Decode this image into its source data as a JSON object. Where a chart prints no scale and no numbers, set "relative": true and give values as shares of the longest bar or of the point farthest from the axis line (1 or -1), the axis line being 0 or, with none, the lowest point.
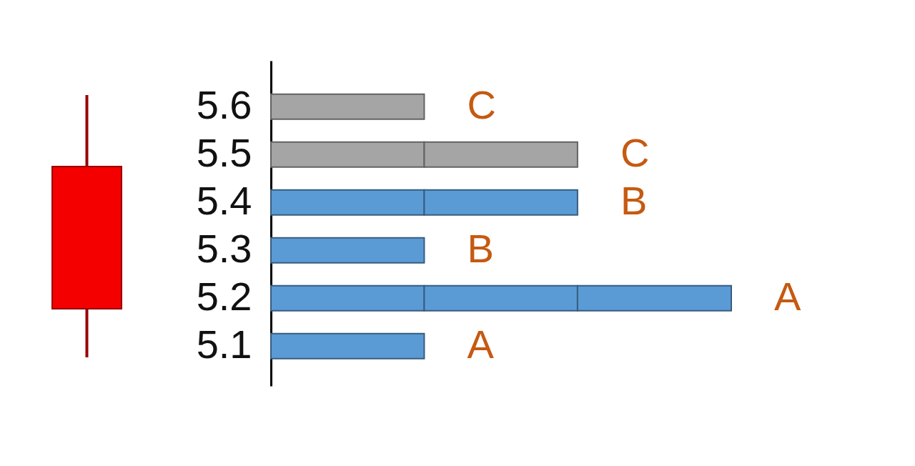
{
  "chart_data": {
    "type": "bar",
    "orientation": "horizontal",
    "relative": true,
    "stacked": true,
    "categories": [
      "5.6",
      "5.5",
      "5.4",
      "5.3",
      "5.2",
      "5.1"
    ],
    "series": [
      {
        "values": [
          0.333,
          0.333,
          0.333,
          0.333,
          0.333,
          0.333
        ],
        "colors": [
          "#a5a5a5",
          "#a5a5a5",
          "#5b9bd5",
          "#5b9bd5",
          "#5b9bd5",
          "#5b9bd5"
        ]
      },
      {
        "values": [
          null,
          0.333,
          0.333,
          null,
          0.333,
          null
        ],
        "colors": [
          null,
          "#a5a5a5",
          "#5b9bd5",
          null,
          "#5b9bd5",
          null
        ]
      },
      {
        "values": [
          null,
          null,
          null,
          null,
          0.334,
          null
        ],
        "colors": [
          null,
          null,
          null,
          null,
          "#5b9bd5",
          null
        ]
      }
    ],
    "annotations": [
      "C",
      "C",
      "B",
      "B",
      "A",
      "A"
    ]
  }
}
